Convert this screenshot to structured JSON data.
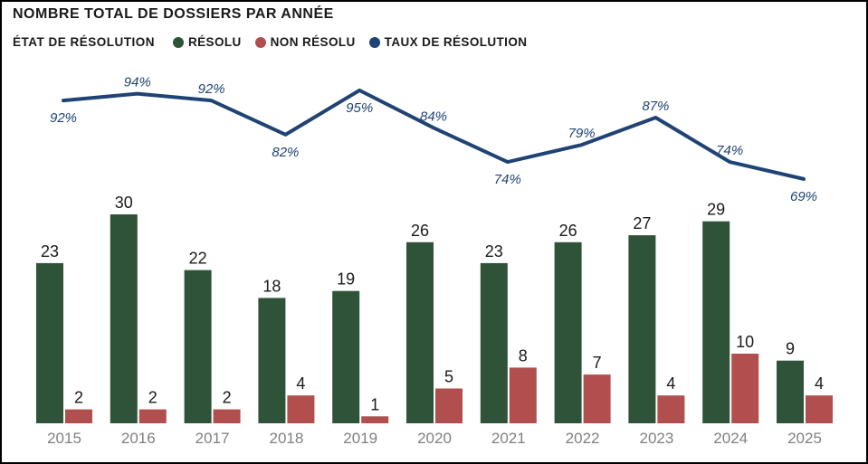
{
  "header": {
    "title": "NOMBRE TOTAL DE DOSSIERS PAR ANNÉE",
    "legend_title": "ÉTAT DE RÉSOLUTION",
    "legend_items": [
      {
        "label": "RÉSOLU",
        "color": "#2E5339"
      },
      {
        "label": "NON RÉSOLU",
        "color": "#B04F4E"
      },
      {
        "label": "TAUX DE RÉSOLUTION",
        "color": "#1F4374"
      }
    ]
  },
  "chart_data": {
    "type": "bar",
    "subtype": "combo-bar-line",
    "title": "NOMBRE TOTAL DE DOSSIERS PAR ANNÉE",
    "categories": [
      "2015",
      "2016",
      "2017",
      "2018",
      "2019",
      "2020",
      "2021",
      "2022",
      "2023",
      "2024",
      "2025"
    ],
    "series": [
      {
        "name": "RÉSOLU",
        "type": "bar",
        "color": "#2E5339",
        "values": [
          23,
          30,
          22,
          18,
          19,
          26,
          23,
          26,
          27,
          29,
          9
        ]
      },
      {
        "name": "NON RÉSOLU",
        "type": "bar",
        "color": "#B04F4E",
        "values": [
          2,
          2,
          2,
          4,
          1,
          5,
          8,
          7,
          4,
          10,
          4
        ]
      },
      {
        "name": "TAUX DE RÉSOLUTION",
        "type": "line",
        "color": "#1F4374",
        "unit": "%",
        "values": [
          92,
          94,
          92,
          82,
          95,
          84,
          74,
          79,
          87,
          74,
          69
        ],
        "labels": [
          "92%",
          "94%",
          "92%",
          "82%",
          "95%",
          "84%",
          "74%",
          "79%",
          "87%",
          "74%",
          "69%"
        ],
        "label_side": [
          "below",
          "above",
          "above",
          "below",
          "below",
          "above",
          "below",
          "above",
          "above",
          "above",
          "below"
        ]
      }
    ],
    "xlabel": "",
    "ylabel": "",
    "bar_ylim": [
      0,
      32
    ],
    "line_ylim": [
      60,
      100
    ],
    "grid": false,
    "value_labels": true,
    "legend_position": "top"
  },
  "colors": {
    "resolu_green": "#2E5339",
    "non_resolu_red": "#B04F4E",
    "taux_blue": "#1F4374",
    "bar_value_text": "#1A1A1A",
    "year_axis_text": "#808080",
    "frame_border": "#000000",
    "background": "#FFFFFF"
  }
}
